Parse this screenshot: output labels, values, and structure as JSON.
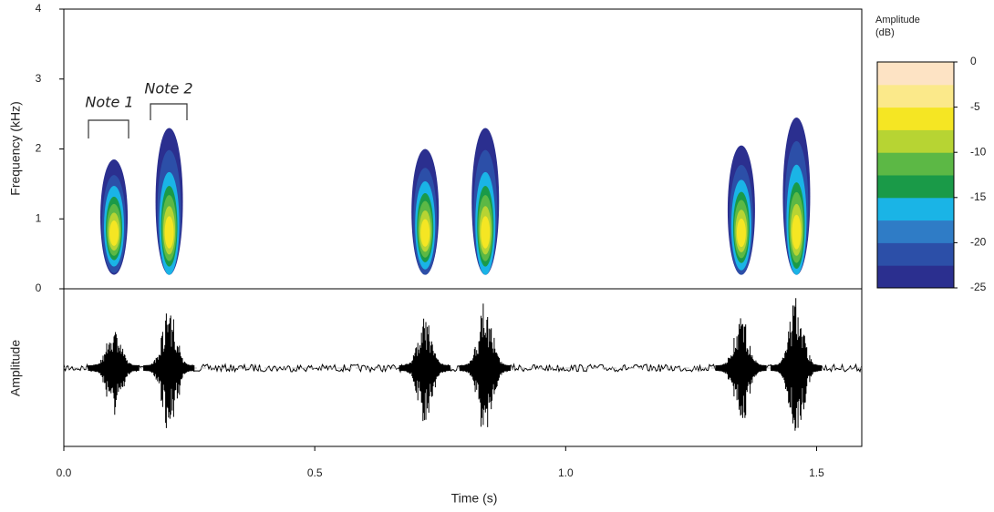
{
  "chart_data": {
    "type": "spectrogram",
    "xlabel": "Time (s)",
    "ylabel": "Frequency (kHz)",
    "y2label": "Amplitude",
    "xlim": [
      0,
      1.59
    ],
    "xticks": [
      {
        "value": 0,
        "label": "0.0"
      },
      0.5,
      {
        "value": 1,
        "label": "1.0"
      },
      1.5
    ],
    "ylim": [
      0,
      4
    ],
    "yticks": [
      0,
      1,
      2,
      3,
      4
    ],
    "colorbar_label": [
      "Amplitude",
      "(dB)"
    ],
    "clim": [
      -25,
      0
    ],
    "cticks": [
      0,
      -5,
      -10,
      -15,
      -20,
      -25
    ],
    "colormap": [
      "#2b2f8f",
      "#2c4fa8",
      "#2f7cc6",
      "#1ab4e6",
      "#1a9a48",
      "#5cb845",
      "#b7d433",
      "#f5e623",
      "#fbe98a",
      "#fde3c4"
    ],
    "annotations": [
      "Note 1",
      "Note 2"
    ],
    "notes": [
      {
        "time": 0.1,
        "fmax": 1.85
      },
      {
        "time": 0.21,
        "fmax": 2.3
      },
      {
        "time": 0.72,
        "fmax": 2.0
      },
      {
        "time": 0.84,
        "fmax": 2.3
      },
      {
        "time": 1.35,
        "fmax": 2.05
      },
      {
        "time": 1.46,
        "fmax": 2.45
      }
    ]
  }
}
